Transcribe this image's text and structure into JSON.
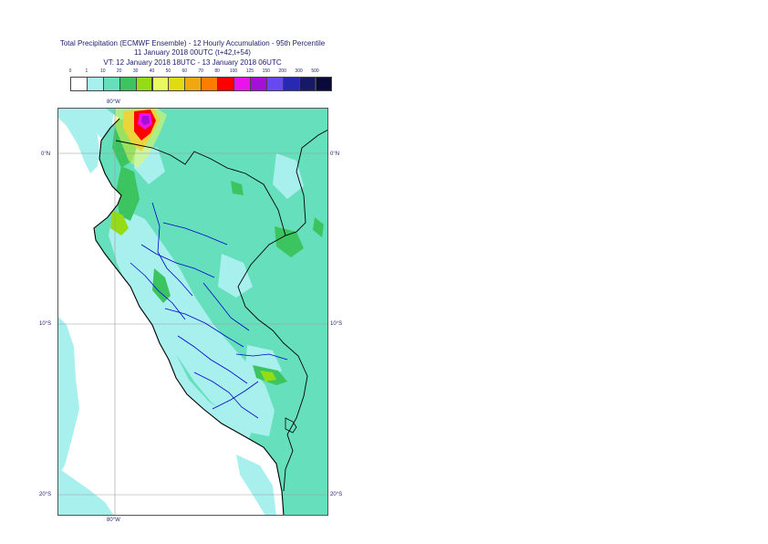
{
  "title": {
    "line1": "Total Precipitation (ECMWF Ensemble) - 12 Hourly Accumulation - 95th Percentile",
    "line2": "11 January 2018 00UTC (t+42,t+54)",
    "line3": "VT: 12 January 2018 18UTC - 13 January 2018 06UTC"
  },
  "legend": {
    "labels": [
      "0",
      "1",
      "10",
      "20",
      "30",
      "40",
      "50",
      "60",
      "70",
      "80",
      "100",
      "125",
      "150",
      "200",
      "300",
      "500"
    ],
    "colors": [
      "#ffffff",
      "#a8f0ee",
      "#66e0bc",
      "#3cc460",
      "#96dc16",
      "#e8fa60",
      "#e0dc10",
      "#f0a810",
      "#ff7c00",
      "#ff0000",
      "#e814e8",
      "#a410d8",
      "#6848f0",
      "#2828b0",
      "#181868",
      "#0a0a3a"
    ]
  },
  "axes": {
    "lon_top": "80°W",
    "lon_bottom": "80°W",
    "lat_labels": [
      "0°N",
      "10°S",
      "20°S"
    ]
  },
  "map_colors": {
    "ocean": "#ffffff",
    "light": "#a8f0ee",
    "medium": "#66e0bc",
    "green": "#3cc460",
    "yellowgreen": "#96dc16",
    "yellow": "#e8fa60",
    "orange": "#f0a810",
    "red": "#ff0000",
    "magenta": "#e814e8",
    "purple": "#a410d8",
    "coast": "#000000",
    "borders": "#0000cc",
    "grid": "#9a9a9a"
  }
}
